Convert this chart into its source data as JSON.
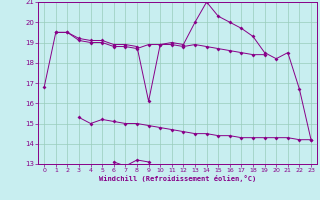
{
  "xlabel": "Windchill (Refroidissement éolien,°C)",
  "x": [
    0,
    1,
    2,
    3,
    4,
    5,
    6,
    7,
    8,
    9,
    10,
    11,
    12,
    13,
    14,
    15,
    16,
    17,
    18,
    19,
    20,
    21,
    22,
    23
  ],
  "line_upper": [
    16.8,
    19.5,
    19.5,
    19.2,
    19.1,
    19.1,
    18.9,
    18.9,
    18.8,
    16.1,
    18.9,
    19.0,
    18.9,
    20.0,
    21.0,
    20.3,
    20.0,
    19.7,
    19.3,
    18.5,
    18.2,
    18.5,
    16.7,
    14.2
  ],
  "line_mid": [
    null,
    19.5,
    19.5,
    19.1,
    19.0,
    19.0,
    18.8,
    18.8,
    18.7,
    18.9,
    18.9,
    18.9,
    18.8,
    18.9,
    18.8,
    18.7,
    18.6,
    18.5,
    18.4,
    18.4,
    null,
    null,
    null,
    null
  ],
  "line_low": [
    null,
    null,
    null,
    15.3,
    15.0,
    15.2,
    15.1,
    15.0,
    15.0,
    14.9,
    14.8,
    14.7,
    14.6,
    14.5,
    14.5,
    14.4,
    14.4,
    14.3,
    14.3,
    14.3,
    14.3,
    14.3,
    14.2,
    14.2
  ],
  "line_dip": [
    null,
    null,
    null,
    null,
    null,
    null,
    13.1,
    12.9,
    13.2,
    13.1,
    null,
    null,
    null,
    null,
    null,
    null,
    null,
    null,
    null,
    null,
    null,
    null,
    null,
    null
  ],
  "bg_color": "#c8eef0",
  "grid_color": "#99ccbb",
  "line_color": "#880088",
  "ylim": [
    13,
    21
  ],
  "xlim": [
    -0.5,
    23.5
  ],
  "yticks": [
    13,
    14,
    15,
    16,
    17,
    18,
    19,
    20,
    21
  ],
  "xticks": [
    0,
    1,
    2,
    3,
    4,
    5,
    6,
    7,
    8,
    9,
    10,
    11,
    12,
    13,
    14,
    15,
    16,
    17,
    18,
    19,
    20,
    21,
    22,
    23
  ]
}
